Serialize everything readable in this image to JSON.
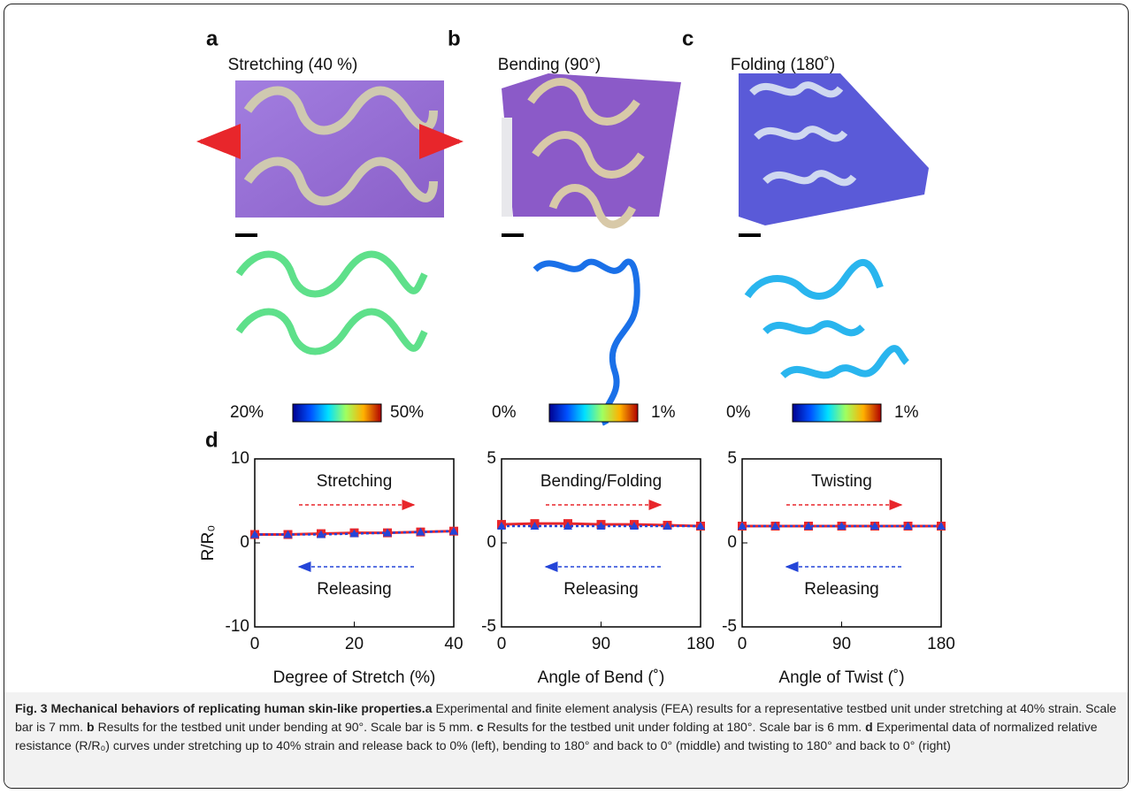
{
  "panels": [
    {
      "label": "a",
      "title": "Stretching (40 %)",
      "colorbar": [
        "20%",
        "50%"
      ]
    },
    {
      "label": "b",
      "title": "Bending (90°)",
      "colorbar": [
        "0%",
        "1%"
      ]
    },
    {
      "label": "c",
      "title": "Folding (180˚)",
      "colorbar": [
        "0%",
        "1%"
      ]
    }
  ],
  "chart_panel_label": "d",
  "chart_data": [
    {
      "type": "line",
      "ylabel": "R/R₀",
      "xlabel": "Degree of Stretch (%)",
      "x": [
        0,
        6.67,
        13.33,
        20,
        26.67,
        33.33,
        40
      ],
      "xlim": [
        0,
        40
      ],
      "xticks": [
        0,
        20,
        40
      ],
      "ylim": [
        -10,
        10
      ],
      "yticks": [
        -10,
        0,
        10
      ],
      "series": [
        {
          "name": "Stretching",
          "color": "#e8262b",
          "values": [
            1.0,
            1.0,
            1.1,
            1.2,
            1.2,
            1.3,
            1.4
          ]
        },
        {
          "name": "Releasing",
          "color": "#2445d8",
          "values": [
            1.0,
            1.0,
            1.0,
            1.1,
            1.2,
            1.3,
            1.4
          ]
        }
      ]
    },
    {
      "type": "line",
      "xlabel": "Angle of Bend (˚)",
      "x": [
        0,
        30,
        60,
        90,
        120,
        150,
        180
      ],
      "xlim": [
        0,
        180
      ],
      "xticks": [
        0,
        90,
        180
      ],
      "ylim": [
        -5,
        5
      ],
      "yticks": [
        -5,
        0,
        5
      ],
      "series": [
        {
          "name": "Bending/Folding",
          "color": "#e8262b",
          "values": [
            1.1,
            1.15,
            1.15,
            1.1,
            1.1,
            1.05,
            1.0
          ]
        },
        {
          "name": "Releasing",
          "color": "#2445d8",
          "values": [
            1.0,
            1.0,
            1.0,
            1.0,
            1.0,
            1.0,
            1.0
          ]
        }
      ]
    },
    {
      "type": "line",
      "xlabel": "Angle of Twist (˚)",
      "x": [
        0,
        30,
        60,
        90,
        120,
        150,
        180
      ],
      "xlim": [
        0,
        180
      ],
      "xticks": [
        0,
        90,
        180
      ],
      "ylim": [
        -5,
        5
      ],
      "yticks": [
        -5,
        0,
        5
      ],
      "series": [
        {
          "name": "Twisting",
          "color": "#e8262b",
          "values": [
            1.0,
            1.0,
            1.0,
            1.0,
            1.0,
            1.0,
            1.0
          ]
        },
        {
          "name": "Releasing",
          "color": "#2445d8",
          "values": [
            1.0,
            1.0,
            1.0,
            1.0,
            1.0,
            1.0,
            1.0
          ]
        }
      ]
    }
  ],
  "caption": {
    "title": "Fig. 3 Mechanical behaviors of replicating human skin-like properties.",
    "parts": [
      {
        "label": "a",
        "text": "Experimental and finite element analysis (FEA) results for a representative testbed unit under stretching at 40% strain. Scale bar is 7 mm."
      },
      {
        "label": "b",
        "text": "Results for the testbed unit under bending at 90°. Scale bar is 5 mm."
      },
      {
        "label": "c",
        "text": "Results for the testbed unit under folding at 180°. Scale bar is 6 mm."
      },
      {
        "label": "d",
        "text": "Experimental data of normalized relative resistance (R/R₀) curves under stretching up to 40% strain and release back to 0% (left), bending to 180° and back to 0° (middle) and twisting to 180° and back to 0° (right)"
      }
    ]
  }
}
